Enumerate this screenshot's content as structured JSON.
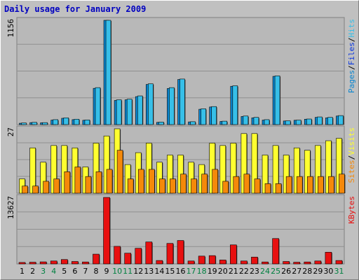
{
  "title": "Daily usage for January 2009",
  "colors": {
    "background": "#c0c0c0",
    "panel": "#b8b8b8",
    "pages": "#0a86d0",
    "files": "#0a37e0",
    "hits": "#37bfe8",
    "sites": "#f5890a",
    "visits": "#ffff30",
    "kbytes": "#e81010",
    "weekday_label": "#000000",
    "weekend_label": "#008040"
  },
  "chart_data": {
    "type": "bar",
    "title": "Daily usage for January 2009",
    "days": [
      "1",
      "2",
      "3",
      "4",
      "5",
      "6",
      "7",
      "8",
      "9",
      "10",
      "11",
      "12",
      "13",
      "14",
      "15",
      "16",
      "17",
      "18",
      "19",
      "20",
      "21",
      "22",
      "23",
      "24",
      "25",
      "26",
      "27",
      "28",
      "29",
      "30",
      "31"
    ],
    "weekend_days": [
      "3",
      "4",
      "10",
      "11",
      "17",
      "18",
      "24",
      "25",
      "31"
    ],
    "panels": [
      {
        "name": "hits",
        "max_label": "1156",
        "ymax": 1156,
        "legend": [
          "Pages",
          "/",
          "Files",
          "/",
          "Hits"
        ],
        "legend_colors": [
          "#0a86d0",
          "#000000",
          "#0a37e0",
          "#000000",
          "#37bfe8"
        ],
        "series": [
          {
            "name": "Pages",
            "values": [
              15,
              22,
              20,
              50,
              70,
              55,
              48,
              402,
              1156,
              268,
              275,
              310,
              445,
              25,
              400,
              500,
              30,
              170,
              195,
              35,
              425,
              90,
              75,
              50,
              535,
              40,
              48,
              60,
              80,
              75,
              95
            ]
          },
          {
            "name": "Hits",
            "values": [
              18,
              25,
              22,
              55,
              75,
              60,
              52,
              410,
              1156,
              275,
              282,
              318,
              452,
              28,
              410,
              505,
              32,
              175,
              200,
              38,
              430,
              95,
              80,
              55,
              540,
              42,
              50,
              62,
              85,
              80,
              100
            ]
          }
        ]
      },
      {
        "name": "visits",
        "max_label": "27",
        "ymax": 27,
        "legend": [
          "Sites",
          "/",
          "Visits"
        ],
        "legend_colors": [
          "#f5890a",
          "#000000",
          "#ffff30"
        ],
        "series": [
          {
            "name": "Visits",
            "values": [
              6,
              19,
              13,
              20,
              20,
              19,
              11,
              21,
              24,
              27,
              12,
              17,
              21,
              13,
              16,
              16,
              13,
              12,
              21,
              20,
              21,
              25,
              25,
              16,
              20,
              16,
              19,
              18,
              20,
              22,
              23
            ]
          },
          {
            "name": "Sites",
            "values": [
              3,
              3,
              5,
              6,
              9,
              11,
              7,
              9,
              10,
              18,
              6,
              10,
              10,
              6,
              6,
              8,
              6,
              8,
              10,
              5,
              7,
              8,
              6,
              4,
              4,
              7,
              7,
              7,
              7,
              7,
              8
            ]
          }
        ]
      },
      {
        "name": "kbytes",
        "max_label": "13627",
        "ymax": 13627,
        "legend": [
          "KBytes"
        ],
        "legend_colors": [
          "#e81010"
        ],
        "series": [
          {
            "name": "KBytes",
            "values": [
              300,
              350,
              420,
              600,
              900,
              500,
              400,
              2000,
              13627,
              3600,
              2200,
              3200,
              4500,
              700,
              4200,
              4800,
              600,
              1600,
              1700,
              800,
              3900,
              600,
              1400,
              400,
              5200,
              500,
              350,
              400,
              600,
              2400,
              700
            ]
          }
        ]
      }
    ]
  }
}
